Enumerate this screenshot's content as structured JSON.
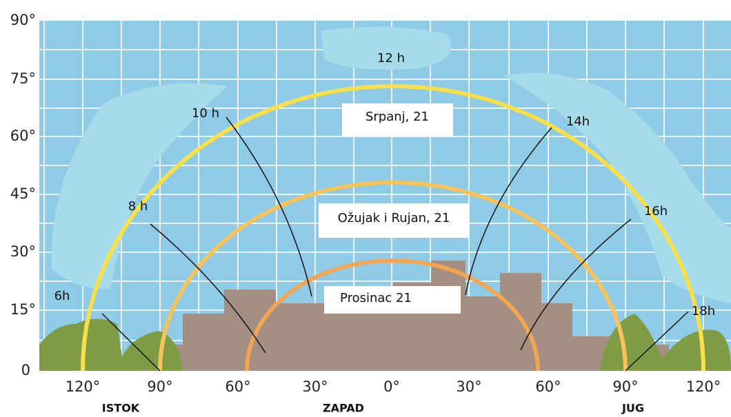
{
  "y_axis": {
    "labels": [
      "90°",
      "75°",
      "60°",
      "45°",
      "30°",
      "15°",
      "0"
    ]
  },
  "x_axis": {
    "labels": [
      "120°",
      "90°",
      "60°",
      "30°",
      "0°",
      "30°",
      "60°",
      "90°",
      "120°"
    ]
  },
  "directions": [
    "ISTOK",
    "ZAPAD",
    "JUG"
  ],
  "sun_paths": [
    {
      "label": "Srpanj, 21"
    },
    {
      "label": "Ožujak i Rujan, 21"
    },
    {
      "label": "Prosinac 21"
    }
  ],
  "hours": [
    "12 h",
    "10 h",
    "8 h",
    "6h",
    "14h",
    "16h",
    "18h"
  ]
}
